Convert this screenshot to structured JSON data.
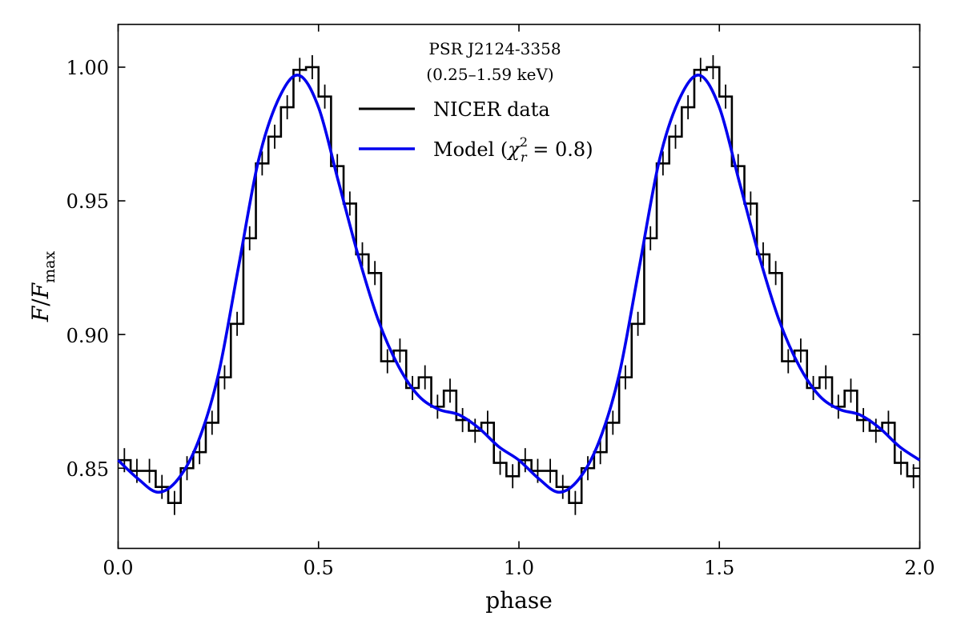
{
  "chart_data": {
    "type": "line",
    "title_lines": [
      "PSR J2124-3358",
      "(0.25–1.59 keV)"
    ],
    "xlabel": "phase",
    "ylabel": {
      "base": "F",
      "sep": "/",
      "main": "F",
      "sub": "max"
    },
    "xlim": [
      0.0,
      2.0
    ],
    "ylim": [
      0.82,
      1.016
    ],
    "xticks": [
      "0.0",
      "0.5",
      "1.0",
      "1.5",
      "2.0"
    ],
    "yticks": [
      "0.85",
      "0.90",
      "0.95",
      "1.00"
    ],
    "grid": false,
    "legend_position": "upper center",
    "legend": {
      "data_label": "NICER data",
      "model_prefix": "Model (",
      "chi": "χ",
      "chi_sup": "2",
      "chi_sub": "r",
      "model_suffix": " = 0.8)"
    },
    "colors": {
      "data": "#000000",
      "model": "#0000ee"
    },
    "series": [
      {
        "name": "NICER data",
        "kind": "step",
        "bin_width": 0.03125,
        "phase_start": [
          0.0,
          0.03125,
          0.0625,
          0.09375,
          0.125,
          0.15625,
          0.1875,
          0.21875,
          0.25,
          0.28125,
          0.3125,
          0.34375,
          0.375,
          0.40625,
          0.4375,
          0.46875,
          0.5,
          0.53125,
          0.5625,
          0.59375,
          0.625,
          0.65625,
          0.6875,
          0.71875,
          0.75,
          0.78125,
          0.8125,
          0.84375,
          0.875,
          0.90625,
          0.9375,
          0.96875
        ],
        "values": [
          0.853,
          0.849,
          0.849,
          0.843,
          0.837,
          0.85,
          0.856,
          0.867,
          0.884,
          0.904,
          0.936,
          0.964,
          0.974,
          0.985,
          0.999,
          1.0,
          0.989,
          0.963,
          0.949,
          0.93,
          0.923,
          0.89,
          0.894,
          0.88,
          0.884,
          0.873,
          0.879,
          0.868,
          0.864,
          0.867,
          0.852,
          0.847
        ],
        "errors": [
          0.0045,
          0.0045,
          0.0045,
          0.0045,
          0.0045,
          0.0045,
          0.0045,
          0.0045,
          0.0045,
          0.0045,
          0.0045,
          0.0045,
          0.0045,
          0.0045,
          0.0045,
          0.0045,
          0.0045,
          0.0045,
          0.0045,
          0.0045,
          0.0045,
          0.0045,
          0.0045,
          0.0045,
          0.0045,
          0.0045,
          0.0045,
          0.0045,
          0.0045,
          0.0045,
          0.0045,
          0.0045
        ],
        "period": 1.0
      },
      {
        "name": "Model (χ²_r = 0.8)",
        "kind": "line",
        "phase": [
          0.0,
          0.05,
          0.1,
          0.15,
          0.2,
          0.25,
          0.3,
          0.35,
          0.4,
          0.45,
          0.5,
          0.55,
          0.6,
          0.65,
          0.7,
          0.75,
          0.8,
          0.85,
          0.9,
          0.95,
          1.0
        ],
        "values": [
          0.853,
          0.846,
          0.841,
          0.846,
          0.86,
          0.885,
          0.925,
          0.965,
          0.988,
          0.997,
          0.985,
          0.957,
          0.929,
          0.905,
          0.888,
          0.877,
          0.872,
          0.87,
          0.865,
          0.858,
          0.853
        ],
        "period": 1.0
      }
    ]
  }
}
